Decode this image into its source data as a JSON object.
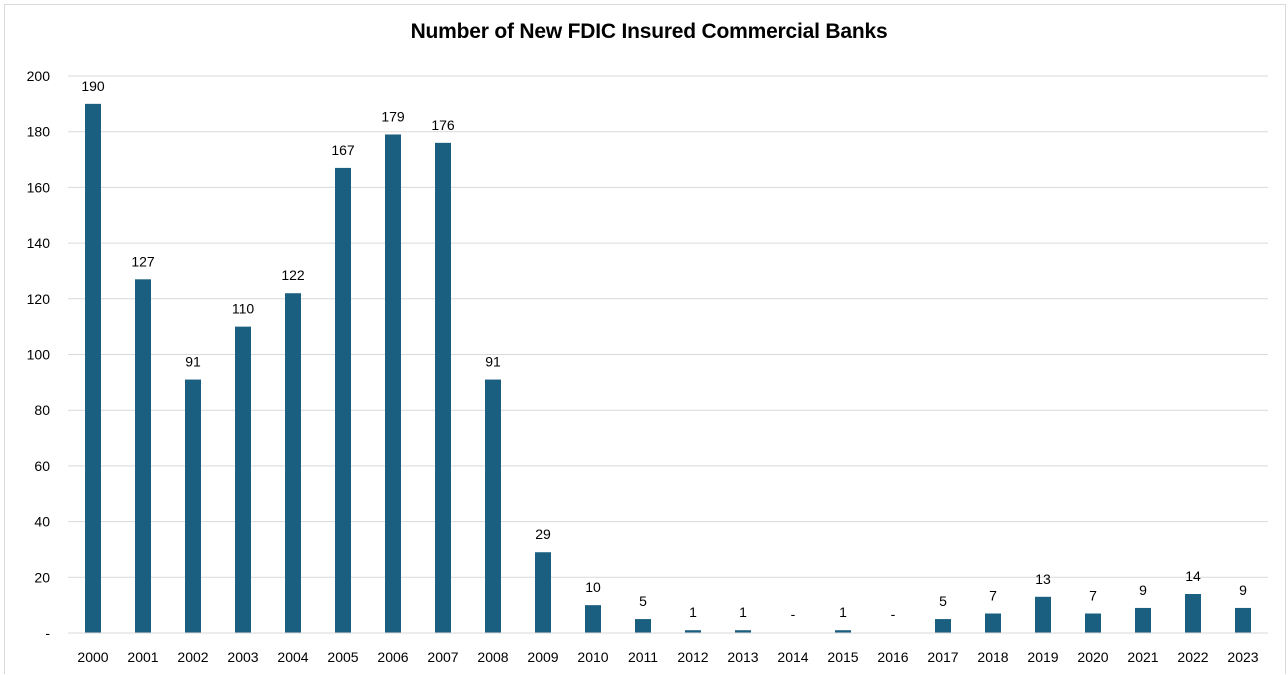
{
  "chart_data": {
    "type": "bar",
    "title": "Number of New FDIC Insured Commercial Banks",
    "categories": [
      "2000",
      "2001",
      "2002",
      "2003",
      "2004",
      "2005",
      "2006",
      "2007",
      "2008",
      "2009",
      "2010",
      "2011",
      "2012",
      "2013",
      "2014",
      "2015",
      "2016",
      "2017",
      "2018",
      "2019",
      "2020",
      "2021",
      "2022",
      "2023"
    ],
    "values": [
      190,
      127,
      91,
      110,
      122,
      167,
      179,
      176,
      91,
      29,
      10,
      5,
      1,
      1,
      0,
      1,
      0,
      5,
      7,
      13,
      7,
      9,
      14,
      9
    ],
    "data_labels": [
      "190",
      "127",
      "91",
      "110",
      "122",
      "167",
      "179",
      "176",
      "91",
      "29",
      "10",
      "5",
      "1",
      "1",
      "-",
      "1",
      "-",
      "5",
      "7",
      "13",
      "7",
      "9",
      "14",
      "9"
    ],
    "ylim": [
      0,
      200
    ],
    "yticks": [
      "-",
      "20",
      "40",
      "60",
      "80",
      "100",
      "120",
      "140",
      "160",
      "180",
      "200"
    ],
    "grid": true,
    "legend": "none",
    "bar_color": "#1a5e80",
    "xlabel": "",
    "ylabel": ""
  }
}
